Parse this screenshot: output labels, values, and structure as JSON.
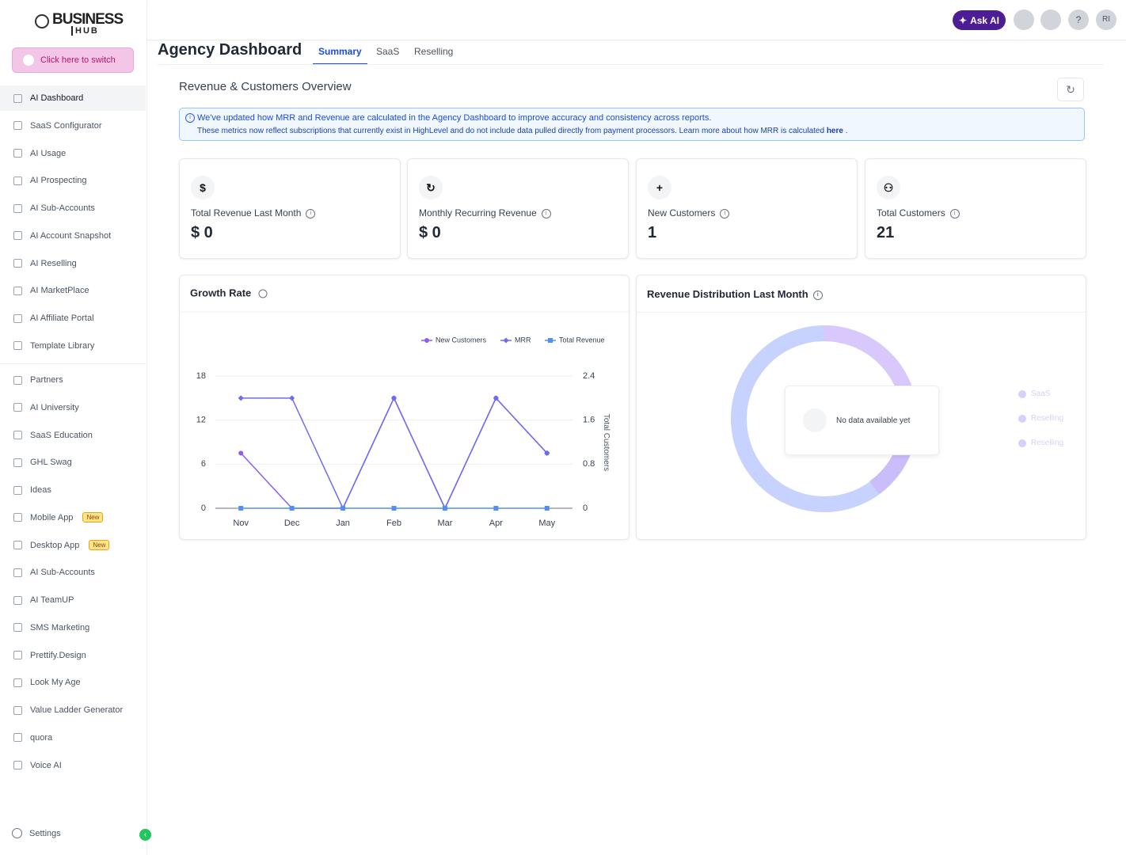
{
  "sidebar": {
    "logo": {
      "line1": "BUSINESS",
      "line2": "HUB"
    },
    "switch": "Click here to switch",
    "nav_group1": [
      {
        "label": "AI Dashboard"
      },
      {
        "label": "SaaS Configurator"
      },
      {
        "label": "AI Usage"
      },
      {
        "label": "AI Prospecting"
      },
      {
        "label": "AI Sub-Accounts"
      },
      {
        "label": "AI Account Snapshot"
      },
      {
        "label": "AI Reselling"
      },
      {
        "label": "AI MarketPlace"
      },
      {
        "label": "AI Affiliate Portal"
      },
      {
        "label": "Template Library"
      }
    ],
    "nav_group2": [
      {
        "label": "Partners"
      },
      {
        "label": "AI University"
      },
      {
        "label": "SaaS Education"
      },
      {
        "label": "GHL Swag"
      },
      {
        "label": "Ideas"
      },
      {
        "label": "Mobile App",
        "badge": "New"
      },
      {
        "label": "Desktop App",
        "badge": "New"
      },
      {
        "label": "AI Sub-Accounts"
      },
      {
        "label": "AI TeamUP"
      },
      {
        "label": "SMS Marketing"
      },
      {
        "label": "Prettify.Design"
      },
      {
        "label": "Look My Age"
      },
      {
        "label": "Value Ladder Generator"
      },
      {
        "label": "quora"
      },
      {
        "label": "Voice AI"
      }
    ],
    "settings": "Settings"
  },
  "header": {
    "ask_ai": "Ask AI",
    "help": "?",
    "avatar": "RI"
  },
  "page": {
    "title": "Agency Dashboard",
    "tabs": [
      "Summary",
      "SaaS",
      "Reselling"
    ]
  },
  "overview": {
    "title": "Revenue & Customers Overview",
    "notice": {
      "line1": "We've updated how MRR and Revenue are calculated in the Agency Dashboard to improve accuracy and consistency across reports.",
      "line2": "These metrics now reflect subscriptions that currently exist in HighLevel and do not include data pulled directly from payment processors. Learn more about how MRR is calculated",
      "link": "here",
      "end": "."
    },
    "cards": [
      {
        "icon": "$",
        "label": "Total Revenue Last Month",
        "value": "$ 0"
      },
      {
        "icon": "↻",
        "label": "Monthly Recurring Revenue",
        "value": "$ 0"
      },
      {
        "icon": "+",
        "label": "New Customers",
        "value": "1"
      },
      {
        "icon": "⚇",
        "label": "Total Customers",
        "value": "21"
      }
    ]
  },
  "chart_data": {
    "type": "line",
    "title": "Growth Rate",
    "categories": [
      "Nov",
      "Dec",
      "Jan",
      "Feb",
      "Mar",
      "Apr",
      "May"
    ],
    "series": [
      {
        "name": "New Customers",
        "color": "#8b5cf6",
        "marker": "circle",
        "axis": "y2",
        "values": [
          1,
          0,
          0,
          2,
          0,
          2,
          1
        ]
      },
      {
        "name": "MRR",
        "color": "#6d6cf0",
        "marker": "diamond",
        "axis": "y2",
        "values": [
          2,
          2,
          0,
          2,
          0,
          2,
          1
        ]
      },
      {
        "name": "Total Revenue",
        "color": "#4f8ff7",
        "marker": "square",
        "values": [
          0,
          0,
          0,
          0,
          0,
          0,
          0
        ]
      }
    ],
    "ylim": [
      0,
      18
    ],
    "yticks": [
      0,
      6,
      12,
      18
    ],
    "y2lim": [
      0,
      2.4
    ],
    "y2ticks": [
      0,
      0.8,
      1.6,
      2.4
    ],
    "y2label": "Total Customers",
    "legend": "top-right"
  },
  "revenue_distribution": {
    "title": "Revenue Distribution Last Month",
    "message": "No data available yet",
    "legend": [
      "SaaS",
      "Reselling",
      "Reselling"
    ]
  }
}
